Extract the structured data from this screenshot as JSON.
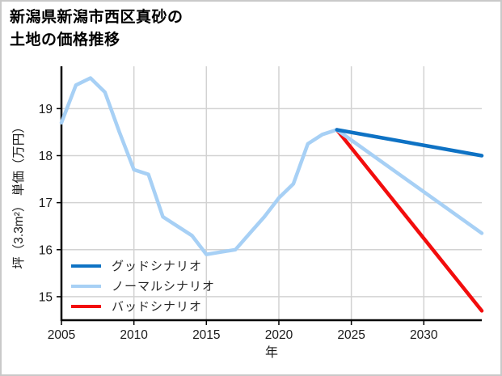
{
  "header": {
    "title_lines": [
      "新潟県新潟市西区真砂の",
      "土地の価格推移"
    ]
  },
  "chart_data": {
    "type": "line",
    "title": "新潟県新潟市西区真砂の土地の価格推移",
    "xlabel": "年",
    "ylabel": "坪（3.3m²） 単価（万円）",
    "xlim": [
      2005,
      2034
    ],
    "ylim": [
      14.5,
      19.9
    ],
    "xticks": [
      2005,
      2010,
      2015,
      2020,
      2025,
      2030
    ],
    "yticks": [
      15,
      16,
      17,
      18,
      19
    ],
    "grid": true,
    "grid_color": "#d2d2d2",
    "axis_color": "#000000",
    "tick_label_color": "#1a1a1a",
    "legend_position": "lower-left",
    "series": [
      {
        "key": "good",
        "name": "グッドシナリオ",
        "color": "#0e72c4",
        "x": [
          2024,
          2034
        ],
        "values": [
          18.55,
          18.0
        ]
      },
      {
        "key": "normal",
        "name": "ノーマルシナリオ",
        "color": "#a7d0f5",
        "x": [
          2005,
          2006,
          2007,
          2008,
          2009,
          2010,
          2011,
          2012,
          2013,
          2014,
          2015,
          2016,
          2017,
          2018,
          2019,
          2020,
          2021,
          2022,
          2023,
          2024,
          2034
        ],
        "values": [
          18.7,
          19.5,
          19.65,
          19.35,
          18.5,
          17.7,
          17.6,
          16.7,
          16.5,
          16.3,
          15.9,
          15.95,
          16.0,
          16.35,
          16.7,
          17.1,
          17.4,
          18.25,
          18.45,
          18.55,
          16.35
        ]
      },
      {
        "key": "bad",
        "name": "バッドシナリオ",
        "color": "#f20d0d",
        "x": [
          2024,
          2034
        ],
        "values": [
          18.55,
          14.7
        ]
      }
    ]
  }
}
